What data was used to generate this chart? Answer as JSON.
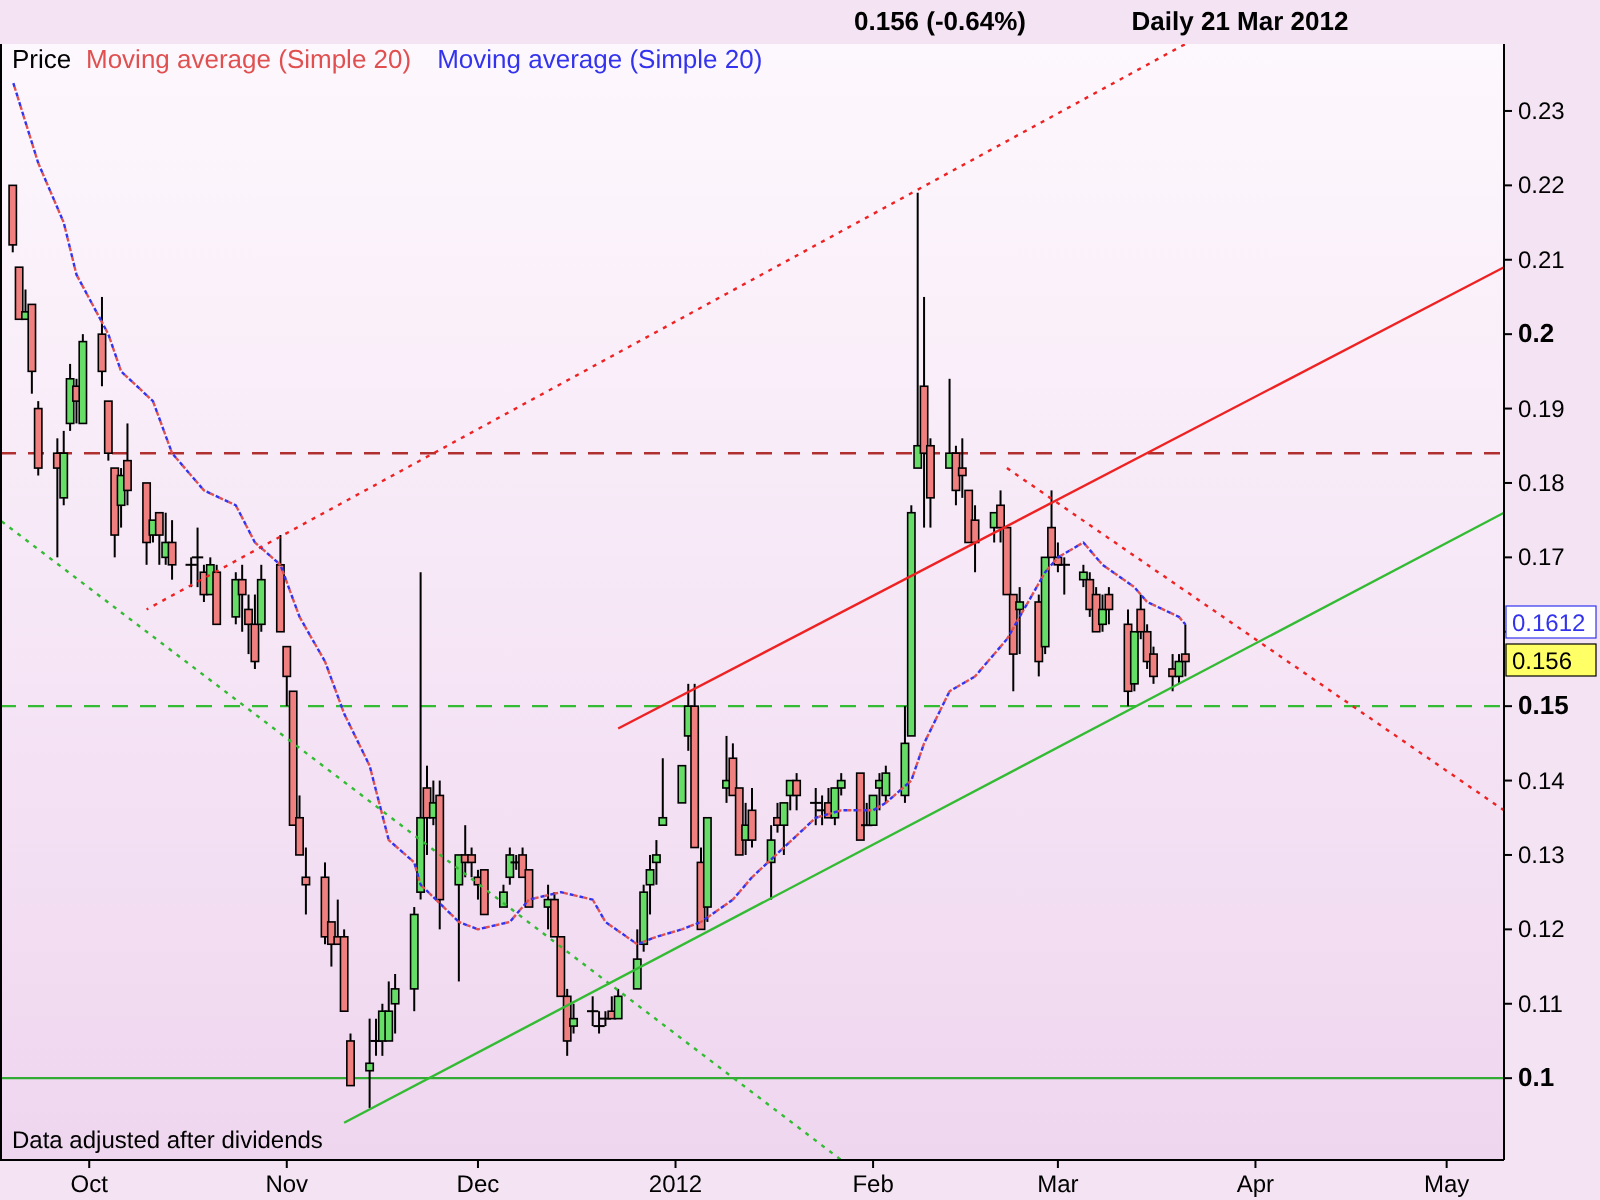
{
  "chart_data": {
    "type": "candlestick",
    "title": "0.156 (-0.64%)",
    "subtitle": "Daily 21 Mar 2012",
    "legend": "top left",
    "xlim": [
      "2011-09-17",
      "2012-05-10"
    ],
    "xticks": [
      {
        "value": "2011-10-01",
        "label": "Oct"
      },
      {
        "value": "2011-11-01",
        "label": "Nov"
      },
      {
        "value": "2011-12-01",
        "label": "Dec"
      },
      {
        "value": "2012-01-01",
        "label": "2012"
      },
      {
        "value": "2012-02-01",
        "label": "Feb"
      },
      {
        "value": "2012-03-01",
        "label": "Mar"
      },
      {
        "value": "2012-04-01",
        "label": "Apr"
      },
      {
        "value": "2012-05-01",
        "label": "May"
      }
    ],
    "ylim": [
      0.089,
      0.239
    ],
    "yticks": [
      0.1,
      0.11,
      0.12,
      0.13,
      0.14,
      0.15,
      {
        "value": 0.16,
        "label": null
      },
      0.17,
      0.18,
      0.19,
      0.2,
      0.21,
      0.22,
      0.23
    ],
    "ref_lines": [
      {
        "axis": "y",
        "value": 0.184,
        "color": "#b03030",
        "line_style": "dashed"
      },
      {
        "axis": "y",
        "value": 0.15,
        "color": "#33bb33",
        "line_style": "dashed"
      },
      {
        "axis": "y",
        "value": 0.1,
        "color": "#33aa33",
        "line_style": "solid"
      }
    ],
    "annotations": [
      "Data adjusted after dividends",
      "0.1612",
      "0.156"
    ],
    "series": [
      {
        "name": "Price",
        "x": [
          "2011-09-19",
          "2011-09-20",
          "2011-09-21",
          "2011-09-22",
          "2011-09-23",
          "2011-09-26",
          "2011-09-27",
          "2011-09-28",
          "2011-09-29",
          "2011-09-30",
          "2011-10-03",
          "2011-10-04",
          "2011-10-05",
          "2011-10-06",
          "2011-10-07",
          "2011-10-10",
          "2011-10-11",
          "2011-10-12",
          "2011-10-13",
          "2011-10-14",
          "2011-10-17",
          "2011-10-18",
          "2011-10-19",
          "2011-10-20",
          "2011-10-21",
          "2011-10-24",
          "2011-10-25",
          "2011-10-26",
          "2011-10-27",
          "2011-10-28",
          "2011-10-31",
          "2011-11-01",
          "2011-11-02",
          "2011-11-03",
          "2011-11-04",
          "2011-11-07",
          "2011-11-08",
          "2011-11-09",
          "2011-11-10",
          "2011-11-11",
          "2011-11-14",
          "2011-11-15",
          "2011-11-16",
          "2011-11-17",
          "2011-11-18",
          "2011-11-21",
          "2011-11-22",
          "2011-11-23",
          "2011-11-24",
          "2011-11-25",
          "2011-11-28",
          "2011-11-29",
          "2011-11-30",
          "2011-12-01",
          "2011-12-02",
          "2011-12-05",
          "2011-12-06",
          "2011-12-07",
          "2011-12-08",
          "2011-12-09",
          "2011-12-12",
          "2011-12-13",
          "2011-12-14",
          "2011-12-15",
          "2011-12-16",
          "2011-12-19",
          "2011-12-20",
          "2011-12-21",
          "2011-12-22",
          "2011-12-23",
          "2011-12-26",
          "2011-12-27",
          "2011-12-28",
          "2011-12-29",
          "2011-12-30",
          "2012-01-02",
          "2012-01-03",
          "2012-01-04",
          "2012-01-05",
          "2012-01-06",
          "2012-01-09",
          "2012-01-10",
          "2012-01-11",
          "2012-01-12",
          "2012-01-13",
          "2012-01-16",
          "2012-01-17",
          "2012-01-18",
          "2012-01-19",
          "2012-01-20",
          "2012-01-23",
          "2012-01-24",
          "2012-01-25",
          "2012-01-26",
          "2012-01-27",
          "2012-01-30",
          "2012-01-31",
          "2012-02-01",
          "2012-02-02",
          "2012-02-03",
          "2012-02-06",
          "2012-02-07",
          "2012-02-08",
          "2012-02-09",
          "2012-02-10",
          "2012-02-13",
          "2012-02-14",
          "2012-02-15",
          "2012-02-16",
          "2012-02-17",
          "2012-02-20",
          "2012-02-21",
          "2012-02-22",
          "2012-02-23",
          "2012-02-24",
          "2012-02-27",
          "2012-02-28",
          "2012-02-29",
          "2012-03-01",
          "2012-03-02",
          "2012-03-05",
          "2012-03-06",
          "2012-03-07",
          "2012-03-08",
          "2012-03-09",
          "2012-03-12",
          "2012-03-13",
          "2012-03-14",
          "2012-03-15",
          "2012-03-16",
          "2012-03-19",
          "2012-03-20",
          "2012-03-21"
        ],
        "ohlc": [
          [
            0.22,
            0.22,
            0.211,
            0.212
          ],
          [
            0.209,
            0.209,
            0.202,
            0.202
          ],
          [
            0.202,
            0.206,
            0.202,
            0.203
          ],
          [
            0.204,
            0.204,
            0.192,
            0.195
          ],
          [
            0.19,
            0.191,
            0.181,
            0.182
          ],
          [
            0.184,
            0.186,
            0.17,
            0.182
          ],
          [
            0.178,
            0.187,
            0.177,
            0.184
          ],
          [
            0.188,
            0.196,
            0.187,
            0.194
          ],
          [
            0.193,
            0.194,
            0.188,
            0.191
          ],
          [
            0.188,
            0.2,
            0.188,
            0.199
          ],
          [
            0.2,
            0.205,
            0.193,
            0.195
          ],
          [
            0.191,
            0.191,
            0.183,
            0.184
          ],
          [
            0.182,
            0.182,
            0.17,
            0.173
          ],
          [
            0.177,
            0.182,
            0.174,
            0.181
          ],
          [
            0.183,
            0.188,
            0.177,
            0.179
          ],
          [
            0.18,
            0.18,
            0.169,
            0.172
          ],
          [
            0.173,
            0.175,
            0.172,
            0.175
          ],
          [
            0.176,
            0.176,
            0.169,
            0.173
          ],
          [
            0.17,
            0.176,
            0.169,
            0.172
          ],
          [
            0.172,
            0.175,
            0.167,
            0.169
          ],
          [
            0.169,
            0.17,
            0.166,
            0.169
          ],
          [
            0.17,
            0.174,
            0.166,
            0.17
          ],
          [
            0.168,
            0.169,
            0.164,
            0.165
          ],
          [
            0.165,
            0.17,
            0.165,
            0.169
          ],
          [
            0.168,
            0.169,
            0.161,
            0.161
          ],
          [
            0.162,
            0.168,
            0.161,
            0.167
          ],
          [
            0.167,
            0.169,
            0.16,
            0.165
          ],
          [
            0.163,
            0.165,
            0.157,
            0.161
          ],
          [
            0.161,
            0.165,
            0.155,
            0.156
          ],
          [
            0.161,
            0.169,
            0.16,
            0.167
          ],
          [
            0.169,
            0.173,
            0.16,
            0.16
          ],
          [
            0.158,
            0.158,
            0.15,
            0.154
          ],
          [
            0.152,
            0.152,
            0.134,
            0.134
          ],
          [
            0.135,
            0.138,
            0.13,
            0.13
          ],
          [
            0.127,
            0.131,
            0.122,
            0.126
          ],
          [
            0.127,
            0.129,
            0.118,
            0.119
          ],
          [
            0.121,
            0.121,
            0.115,
            0.118
          ],
          [
            0.119,
            0.124,
            0.118,
            0.118
          ],
          [
            0.119,
            0.12,
            0.109,
            0.109
          ],
          [
            0.105,
            0.106,
            0.099,
            0.099
          ],
          [
            0.101,
            0.108,
            0.096,
            0.102
          ],
          [
            0.105,
            0.108,
            0.103,
            0.105
          ],
          [
            0.105,
            0.11,
            0.103,
            0.109
          ],
          [
            0.105,
            0.113,
            0.105,
            0.109
          ],
          [
            0.11,
            0.114,
            0.106,
            0.112
          ],
          [
            0.112,
            0.123,
            0.109,
            0.122
          ],
          [
            0.125,
            0.168,
            0.124,
            0.135
          ],
          [
            0.139,
            0.142,
            0.13,
            0.135
          ],
          [
            0.135,
            0.14,
            0.134,
            0.137
          ],
          [
            0.138,
            0.14,
            0.12,
            0.124
          ],
          [
            0.126,
            0.13,
            0.113,
            0.13
          ],
          [
            0.13,
            0.134,
            0.127,
            0.129
          ],
          [
            0.13,
            0.131,
            0.127,
            0.129
          ],
          [
            0.127,
            0.128,
            0.124,
            0.126
          ],
          [
            0.128,
            0.128,
            0.122,
            0.122
          ],
          [
            0.123,
            0.126,
            0.123,
            0.125
          ],
          [
            0.127,
            0.131,
            0.126,
            0.13
          ],
          [
            0.129,
            0.13,
            0.128,
            0.129
          ],
          [
            0.13,
            0.131,
            0.127,
            0.127
          ],
          [
            0.128,
            0.128,
            0.123,
            0.123
          ],
          [
            0.123,
            0.126,
            0.12,
            0.124
          ],
          [
            0.124,
            0.125,
            0.119,
            0.119
          ],
          [
            0.119,
            0.119,
            0.111,
            0.111
          ],
          [
            0.111,
            0.112,
            0.103,
            0.105
          ],
          [
            0.107,
            0.11,
            0.106,
            0.108
          ],
          [
            0.109,
            0.111,
            0.107,
            0.109
          ],
          [
            0.107,
            0.109,
            0.106,
            0.107
          ],
          [
            0.108,
            0.109,
            0.107,
            0.108
          ],
          [
            0.109,
            0.111,
            0.108,
            0.108
          ],
          [
            0.108,
            0.112,
            0.108,
            0.111
          ],
          [
            0.112,
            0.12,
            0.112,
            0.116
          ],
          [
            0.118,
            0.126,
            0.117,
            0.125
          ],
          [
            0.126,
            0.13,
            0.122,
            0.128
          ],
          [
            0.129,
            0.132,
            0.126,
            0.13
          ],
          [
            0.134,
            0.143,
            0.134,
            0.135
          ],
          [
            0.137,
            0.142,
            0.137,
            0.142
          ],
          [
            0.146,
            0.153,
            0.144,
            0.15
          ],
          [
            0.15,
            0.153,
            0.131,
            0.131
          ],
          [
            0.129,
            0.131,
            0.12,
            0.12
          ],
          [
            0.123,
            0.135,
            0.121,
            0.135
          ],
          [
            0.139,
            0.146,
            0.137,
            0.14
          ],
          [
            0.143,
            0.145,
            0.138,
            0.138
          ],
          [
            0.139,
            0.139,
            0.13,
            0.13
          ],
          [
            0.132,
            0.137,
            0.13,
            0.134
          ],
          [
            0.136,
            0.139,
            0.131,
            0.132
          ],
          [
            0.129,
            0.134,
            0.124,
            0.132
          ],
          [
            0.135,
            0.137,
            0.133,
            0.134
          ],
          [
            0.134,
            0.137,
            0.13,
            0.137
          ],
          [
            0.138,
            0.14,
            0.136,
            0.14
          ],
          [
            0.14,
            0.141,
            0.136,
            0.138
          ],
          [
            0.137,
            0.139,
            0.134,
            0.137
          ],
          [
            0.136,
            0.138,
            0.134,
            0.136
          ],
          [
            0.137,
            0.139,
            0.135,
            0.135
          ],
          [
            0.135,
            0.139,
            0.134,
            0.139
          ],
          [
            0.139,
            0.141,
            0.138,
            0.14
          ],
          [
            0.141,
            0.141,
            0.132,
            0.132
          ],
          [
            0.134,
            0.137,
            0.134,
            0.134
          ],
          [
            0.134,
            0.138,
            0.134,
            0.138
          ],
          [
            0.139,
            0.141,
            0.136,
            0.14
          ],
          [
            0.138,
            0.142,
            0.137,
            0.141
          ],
          [
            0.138,
            0.15,
            0.137,
            0.145
          ],
          [
            0.146,
            0.177,
            0.146,
            0.176
          ],
          [
            0.182,
            0.219,
            0.182,
            0.185
          ],
          [
            0.193,
            0.205,
            0.174,
            0.184
          ],
          [
            0.185,
            0.186,
            0.174,
            0.178
          ],
          [
            0.182,
            0.194,
            0.182,
            0.184
          ],
          [
            0.184,
            0.185,
            0.177,
            0.179
          ],
          [
            0.182,
            0.186,
            0.178,
            0.181
          ],
          [
            0.179,
            0.179,
            0.172,
            0.172
          ],
          [
            0.175,
            0.177,
            0.168,
            0.172
          ],
          [
            0.174,
            0.176,
            0.172,
            0.176
          ],
          [
            0.177,
            0.179,
            0.172,
            0.174
          ],
          [
            0.174,
            0.174,
            0.165,
            0.165
          ],
          [
            0.165,
            0.165,
            0.152,
            0.157
          ],
          [
            0.163,
            0.166,
            0.157,
            0.164
          ],
          [
            0.164,
            0.165,
            0.154,
            0.156
          ],
          [
            0.158,
            0.17,
            0.157,
            0.17
          ],
          [
            0.174,
            0.179,
            0.17,
            0.17
          ],
          [
            0.17,
            0.172,
            0.168,
            0.169
          ],
          [
            0.169,
            0.17,
            0.165,
            0.169
          ],
          [
            0.167,
            0.169,
            0.166,
            0.168
          ],
          [
            0.167,
            0.168,
            0.162,
            0.163
          ],
          [
            0.165,
            0.166,
            0.16,
            0.16
          ],
          [
            0.161,
            0.165,
            0.16,
            0.163
          ],
          [
            0.165,
            0.166,
            0.161,
            0.163
          ],
          [
            0.161,
            0.163,
            0.15,
            0.152
          ],
          [
            0.153,
            0.16,
            0.152,
            0.16
          ],
          [
            0.163,
            0.165,
            0.159,
            0.16
          ],
          [
            0.16,
            0.161,
            0.155,
            0.156
          ],
          [
            0.157,
            0.158,
            0.153,
            0.154
          ],
          [
            0.155,
            0.157,
            0.152,
            0.154
          ],
          [
            0.154,
            0.157,
            0.153,
            0.156
          ],
          [
            0.157,
            0.161,
            0.154,
            0.156
          ]
        ],
        "colors": [
          "#f08080",
          "#f08080",
          "#66dd66",
          "#f08080",
          "#f08080",
          "#f08080",
          "#66dd66",
          "#66dd66",
          "#f08080",
          "#66dd66",
          "#f08080",
          "#f08080",
          "#f08080",
          "#66dd66",
          "#f08080",
          "#f08080",
          "#66dd66",
          "#f08080",
          "#66dd66",
          "#f08080",
          "#000000",
          "#000000",
          "#f08080",
          "#66dd66",
          "#f08080",
          "#66dd66",
          "#f08080",
          "#f08080",
          "#f08080",
          "#66dd66",
          "#f08080",
          "#f08080",
          "#f08080",
          "#f08080",
          "#f08080",
          "#f08080",
          "#f08080",
          "#f08080",
          "#f08080",
          "#f08080",
          "#66dd66",
          "#000000",
          "#66dd66",
          "#66dd66",
          "#66dd66",
          "#66dd66",
          "#66dd66",
          "#f08080",
          "#66dd66",
          "#f08080",
          "#66dd66",
          "#f08080",
          "#f08080",
          "#f08080",
          "#f08080",
          "#66dd66",
          "#66dd66",
          "#000000",
          "#f08080",
          "#f08080",
          "#66dd66",
          "#f08080",
          "#f08080",
          "#f08080",
          "#66dd66",
          "#000000",
          "#000000",
          "#000000",
          "#f08080",
          "#66dd66",
          "#66dd66",
          "#66dd66",
          "#66dd66",
          "#66dd66",
          "#66dd66",
          "#66dd66",
          "#66dd66",
          "#f08080",
          "#f08080",
          "#66dd66",
          "#66dd66",
          "#f08080",
          "#f08080",
          "#66dd66",
          "#f08080",
          "#66dd66",
          "#f08080",
          "#66dd66",
          "#66dd66",
          "#f08080",
          "#000000",
          "#000000",
          "#f08080",
          "#66dd66",
          "#66dd66",
          "#f08080",
          "#000000",
          "#66dd66",
          "#66dd66",
          "#66dd66",
          "#66dd66",
          "#66dd66",
          "#66dd66",
          "#f08080",
          "#f08080",
          "#66dd66",
          "#f08080",
          "#f08080",
          "#f08080",
          "#f08080",
          "#66dd66",
          "#f08080",
          "#f08080",
          "#f08080",
          "#66dd66",
          "#f08080",
          "#66dd66",
          "#f08080",
          "#f08080",
          "#000000",
          "#66dd66",
          "#f08080",
          "#f08080",
          "#66dd66",
          "#f08080",
          "#f08080",
          "#66dd66",
          "#f08080",
          "#f08080",
          "#f08080",
          "#f08080",
          "#66dd66",
          "#f08080"
        ]
      },
      {
        "type": "line",
        "name": "Moving average (Simple 20)",
        "color": "#e05050",
        "line_style": "dotted",
        "x": [
          "2011-09-19",
          "2011-09-23",
          "2011-09-27",
          "2011-09-29",
          "2011-10-04",
          "2011-10-06",
          "2011-10-11",
          "2011-10-14",
          "2011-10-19",
          "2011-10-24",
          "2011-10-27",
          "2011-10-31",
          "2011-11-03",
          "2011-11-07",
          "2011-11-10",
          "2011-11-14",
          "2011-11-17",
          "2011-11-21",
          "2011-11-22",
          "2011-11-28",
          "2011-12-01",
          "2011-12-06",
          "2011-12-09",
          "2011-12-14",
          "2011-12-19",
          "2011-12-21",
          "2011-12-26",
          "2011-12-29",
          "2012-01-02",
          "2012-01-05",
          "2012-01-10",
          "2012-01-13",
          "2012-01-18",
          "2012-01-23",
          "2012-01-27",
          "2012-02-01",
          "2012-02-03",
          "2012-02-07",
          "2012-02-09",
          "2012-02-13",
          "2012-02-17",
          "2012-02-22",
          "2012-02-24",
          "2012-02-28",
          "2012-03-01",
          "2012-03-05",
          "2012-03-08",
          "2012-03-13",
          "2012-03-15",
          "2012-03-20",
          "2012-03-21"
        ],
        "values": [
          0.234,
          0.223,
          0.215,
          0.208,
          0.2,
          0.195,
          0.191,
          0.184,
          0.179,
          0.177,
          0.172,
          0.169,
          0.162,
          0.156,
          0.149,
          0.142,
          0.132,
          0.129,
          0.126,
          0.121,
          0.12,
          0.121,
          0.124,
          0.125,
          0.124,
          0.121,
          0.118,
          0.119,
          0.12,
          0.121,
          0.124,
          0.127,
          0.131,
          0.135,
          0.136,
          0.136,
          0.137,
          0.14,
          0.145,
          0.152,
          0.154,
          0.159,
          0.162,
          0.168,
          0.17,
          0.172,
          0.169,
          0.166,
          0.164,
          0.162,
          0.161
        ]
      },
      {
        "type": "line",
        "name": "Moving average (Simple 20)",
        "color": "#3333ee",
        "line_style": "dotted",
        "x": [
          "2011-09-19",
          "2011-09-23",
          "2011-09-27",
          "2011-09-29",
          "2011-10-04",
          "2011-10-06",
          "2011-10-11",
          "2011-10-14",
          "2011-10-19",
          "2011-10-24",
          "2011-10-27",
          "2011-10-31",
          "2011-11-03",
          "2011-11-07",
          "2011-11-10",
          "2011-11-14",
          "2011-11-17",
          "2011-11-21",
          "2011-11-22",
          "2011-11-28",
          "2011-12-01",
          "2011-12-06",
          "2011-12-09",
          "2011-12-14",
          "2011-12-19",
          "2011-12-21",
          "2011-12-26",
          "2011-12-29",
          "2012-01-02",
          "2012-01-05",
          "2012-01-10",
          "2012-01-13",
          "2012-01-18",
          "2012-01-23",
          "2012-01-27",
          "2012-02-01",
          "2012-02-03",
          "2012-02-07",
          "2012-02-09",
          "2012-02-13",
          "2012-02-17",
          "2012-02-22",
          "2012-02-24",
          "2012-02-28",
          "2012-03-01",
          "2012-03-05",
          "2012-03-08",
          "2012-03-13",
          "2012-03-15",
          "2012-03-20",
          "2012-03-21"
        ],
        "values": [
          0.234,
          0.223,
          0.215,
          0.208,
          0.2,
          0.195,
          0.191,
          0.184,
          0.179,
          0.177,
          0.172,
          0.169,
          0.162,
          0.156,
          0.149,
          0.142,
          0.132,
          0.129,
          0.126,
          0.121,
          0.12,
          0.121,
          0.124,
          0.125,
          0.124,
          0.121,
          0.118,
          0.119,
          0.12,
          0.121,
          0.124,
          0.127,
          0.131,
          0.135,
          0.136,
          0.136,
          0.137,
          0.14,
          0.145,
          0.152,
          0.154,
          0.159,
          0.162,
          0.168,
          0.17,
          0.172,
          0.169,
          0.166,
          0.164,
          0.162,
          0.161
        ]
      },
      {
        "type": "line",
        "color": "#ee2222",
        "line_style": "dotted",
        "x": [
          "2011-10-10",
          "2012-03-21"
        ],
        "values": [
          0.163,
          0.239
        ]
      },
      {
        "type": "line",
        "color": "#ee2222",
        "line_style": "solid",
        "x": [
          "2011-12-23",
          "2012-05-10"
        ],
        "values": [
          0.147,
          0.209
        ]
      },
      {
        "type": "line",
        "color": "#ee2222",
        "line_style": "dotted",
        "x": [
          "2012-02-22",
          "2012-05-10"
        ],
        "values": [
          0.182,
          0.136
        ]
      },
      {
        "type": "line",
        "color": "#33bb33",
        "line_style": "solid",
        "x": [
          "2011-11-10",
          "2012-05-10"
        ],
        "values": [
          0.094,
          0.176
        ]
      },
      {
        "type": "line",
        "color": "#33bb33",
        "line_style": "dotted",
        "x": [
          "2011-09-17",
          "2012-01-27"
        ],
        "values": [
          0.175,
          0.089
        ]
      }
    ]
  }
}
